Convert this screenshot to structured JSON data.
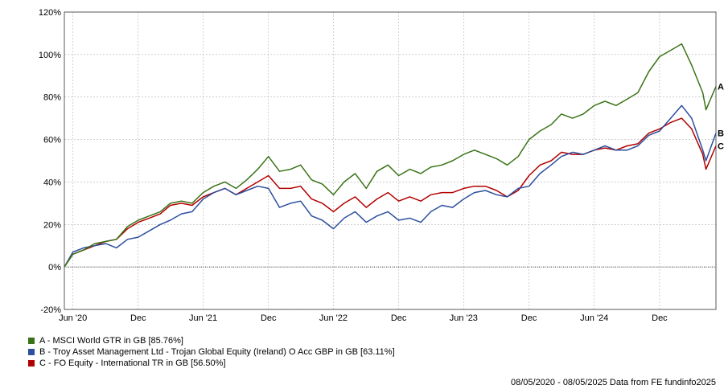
{
  "chart_data": {
    "type": "line",
    "ylim": [
      -20,
      120
    ],
    "y_ticks": [
      "120%",
      "100%",
      "80%",
      "60%",
      "40%",
      "20%",
      "0%",
      "-20%"
    ],
    "y_tick_values": [
      120,
      100,
      80,
      60,
      40,
      20,
      0,
      -20
    ],
    "x_ticks": [
      "Jun '20",
      "Dec",
      "Jun '21",
      "Dec",
      "Jun '22",
      "Dec",
      "Jun '23",
      "Dec",
      "Jun '24",
      "Dec"
    ],
    "x_tick_dates": [
      "2020-06-01",
      "2020-12-01",
      "2021-06-01",
      "2021-12-01",
      "2022-06-01",
      "2022-12-01",
      "2023-06-01",
      "2023-12-01",
      "2024-06-01",
      "2024-12-01"
    ],
    "xlim": [
      "2020-05-08",
      "2025-05-08"
    ],
    "grid": true,
    "zero_line": "dotted",
    "series": [
      {
        "id": "A",
        "name": "A - MSCI World GTR in GB [85.76%]",
        "color": "#3a7317",
        "x": [
          "2020-05-08",
          "2020-06-01",
          "2020-07-01",
          "2020-08-01",
          "2020-09-01",
          "2020-10-01",
          "2020-11-01",
          "2020-12-01",
          "2021-01-01",
          "2021-02-01",
          "2021-03-01",
          "2021-04-01",
          "2021-05-01",
          "2021-06-01",
          "2021-07-01",
          "2021-08-01",
          "2021-09-01",
          "2021-10-01",
          "2021-11-01",
          "2021-12-01",
          "2022-01-01",
          "2022-02-01",
          "2022-03-01",
          "2022-04-01",
          "2022-05-01",
          "2022-06-01",
          "2022-07-01",
          "2022-08-01",
          "2022-09-01",
          "2022-10-01",
          "2022-11-01",
          "2022-12-01",
          "2023-01-01",
          "2023-02-01",
          "2023-03-01",
          "2023-04-01",
          "2023-05-01",
          "2023-06-01",
          "2023-07-01",
          "2023-08-01",
          "2023-09-01",
          "2023-10-01",
          "2023-11-01",
          "2023-12-01",
          "2024-01-01",
          "2024-02-01",
          "2024-03-01",
          "2024-04-01",
          "2024-05-01",
          "2024-06-01",
          "2024-07-01",
          "2024-08-01",
          "2024-09-01",
          "2024-10-01",
          "2024-11-01",
          "2024-12-01",
          "2025-01-01",
          "2025-02-01",
          "2025-03-01",
          "2025-04-01",
          "2025-04-10",
          "2025-05-08"
        ],
        "values": [
          0,
          6,
          8,
          11,
          12,
          13,
          19,
          22,
          24,
          26,
          30,
          31,
          30,
          35,
          38,
          40,
          37,
          41,
          46,
          52,
          45,
          46,
          48,
          41,
          39,
          34,
          40,
          44,
          37,
          45,
          48,
          43,
          46,
          44,
          47,
          48,
          50,
          53,
          55,
          53,
          51,
          48,
          52,
          60,
          64,
          67,
          72,
          70,
          72,
          76,
          78,
          76,
          79,
          82,
          92,
          99,
          102,
          105,
          95,
          82,
          74,
          85
        ]
      },
      {
        "id": "B",
        "name": "B - Troy Asset Management Ltd - Trojan Global Equity (Ireland) O Acc GBP in GB [63.11%]",
        "color": "#2c4f9e",
        "x": [
          "2020-05-08",
          "2020-06-01",
          "2020-07-01",
          "2020-08-01",
          "2020-09-01",
          "2020-10-01",
          "2020-11-01",
          "2020-12-01",
          "2021-01-01",
          "2021-02-01",
          "2021-03-01",
          "2021-04-01",
          "2021-05-01",
          "2021-06-01",
          "2021-07-01",
          "2021-08-01",
          "2021-09-01",
          "2021-10-01",
          "2021-11-01",
          "2021-12-01",
          "2022-01-01",
          "2022-02-01",
          "2022-03-01",
          "2022-04-01",
          "2022-05-01",
          "2022-06-01",
          "2022-07-01",
          "2022-08-01",
          "2022-09-01",
          "2022-10-01",
          "2022-11-01",
          "2022-12-01",
          "2023-01-01",
          "2023-02-01",
          "2023-03-01",
          "2023-04-01",
          "2023-05-01",
          "2023-06-01",
          "2023-07-01",
          "2023-08-01",
          "2023-09-01",
          "2023-10-01",
          "2023-11-01",
          "2023-12-01",
          "2024-01-01",
          "2024-02-01",
          "2024-03-01",
          "2024-04-01",
          "2024-05-01",
          "2024-06-01",
          "2024-07-01",
          "2024-08-01",
          "2024-09-01",
          "2024-10-01",
          "2024-11-01",
          "2024-12-01",
          "2025-01-01",
          "2025-02-01",
          "2025-03-01",
          "2025-04-01",
          "2025-04-10",
          "2025-05-08"
        ],
        "values": [
          0,
          7,
          9,
          10,
          11,
          9,
          13,
          14,
          17,
          20,
          22,
          25,
          26,
          32,
          35,
          37,
          34,
          36,
          38,
          37,
          28,
          30,
          31,
          24,
          22,
          18,
          23,
          26,
          21,
          24,
          26,
          22,
          23,
          21,
          26,
          29,
          28,
          32,
          35,
          36,
          34,
          33,
          37,
          38,
          44,
          48,
          52,
          54,
          53,
          55,
          57,
          55,
          55,
          57,
          62,
          64,
          70,
          76,
          70,
          55,
          50,
          63
        ]
      },
      {
        "id": "C",
        "name": "C - FO Equity - International TR in GB [56.50%]",
        "color": "#b30000",
        "x": [
          "2020-05-08",
          "2020-06-01",
          "2020-07-01",
          "2020-08-01",
          "2020-09-01",
          "2020-10-01",
          "2020-11-01",
          "2020-12-01",
          "2021-01-01",
          "2021-02-01",
          "2021-03-01",
          "2021-04-01",
          "2021-05-01",
          "2021-06-01",
          "2021-07-01",
          "2021-08-01",
          "2021-09-01",
          "2021-10-01",
          "2021-11-01",
          "2021-12-01",
          "2022-01-01",
          "2022-02-01",
          "2022-03-01",
          "2022-04-01",
          "2022-05-01",
          "2022-06-01",
          "2022-07-01",
          "2022-08-01",
          "2022-09-01",
          "2022-10-01",
          "2022-11-01",
          "2022-12-01",
          "2023-01-01",
          "2023-02-01",
          "2023-03-01",
          "2023-04-01",
          "2023-05-01",
          "2023-06-01",
          "2023-07-01",
          "2023-08-01",
          "2023-09-01",
          "2023-10-01",
          "2023-11-01",
          "2023-12-01",
          "2024-01-01",
          "2024-02-01",
          "2024-03-01",
          "2024-04-01",
          "2024-05-01",
          "2024-06-01",
          "2024-07-01",
          "2024-08-01",
          "2024-09-01",
          "2024-10-01",
          "2024-11-01",
          "2024-12-01",
          "2025-01-01",
          "2025-02-01",
          "2025-03-01",
          "2025-04-01",
          "2025-04-10",
          "2025-05-08"
        ],
        "values": [
          0,
          6,
          8,
          10,
          12,
          13,
          18,
          21,
          23,
          25,
          29,
          30,
          29,
          33,
          35,
          37,
          34,
          37,
          40,
          43,
          37,
          37,
          38,
          32,
          30,
          26,
          30,
          33,
          28,
          32,
          35,
          31,
          33,
          31,
          34,
          35,
          35,
          37,
          38,
          38,
          36,
          33,
          36,
          43,
          48,
          50,
          54,
          53,
          53,
          55,
          56,
          55,
          57,
          58,
          63,
          65,
          68,
          70,
          65,
          53,
          46,
          57
        ]
      }
    ]
  },
  "legend": {
    "items": [
      {
        "text": "A - MSCI World GTR in GB [85.76%]",
        "color": "#3a7317"
      },
      {
        "text": "B - Troy Asset Management Ltd - Trojan Global Equity (Ireland) O Acc GBP in GB [63.11%]",
        "color": "#2c4f9e"
      },
      {
        "text": "C - FO Equity - International TR in GB [56.50%]",
        "color": "#b30000"
      }
    ]
  },
  "end_labels": [
    "A",
    "B",
    "C"
  ],
  "footer": {
    "text": "08/05/2020 - 08/05/2025 Data from FE fundinfo2025"
  }
}
